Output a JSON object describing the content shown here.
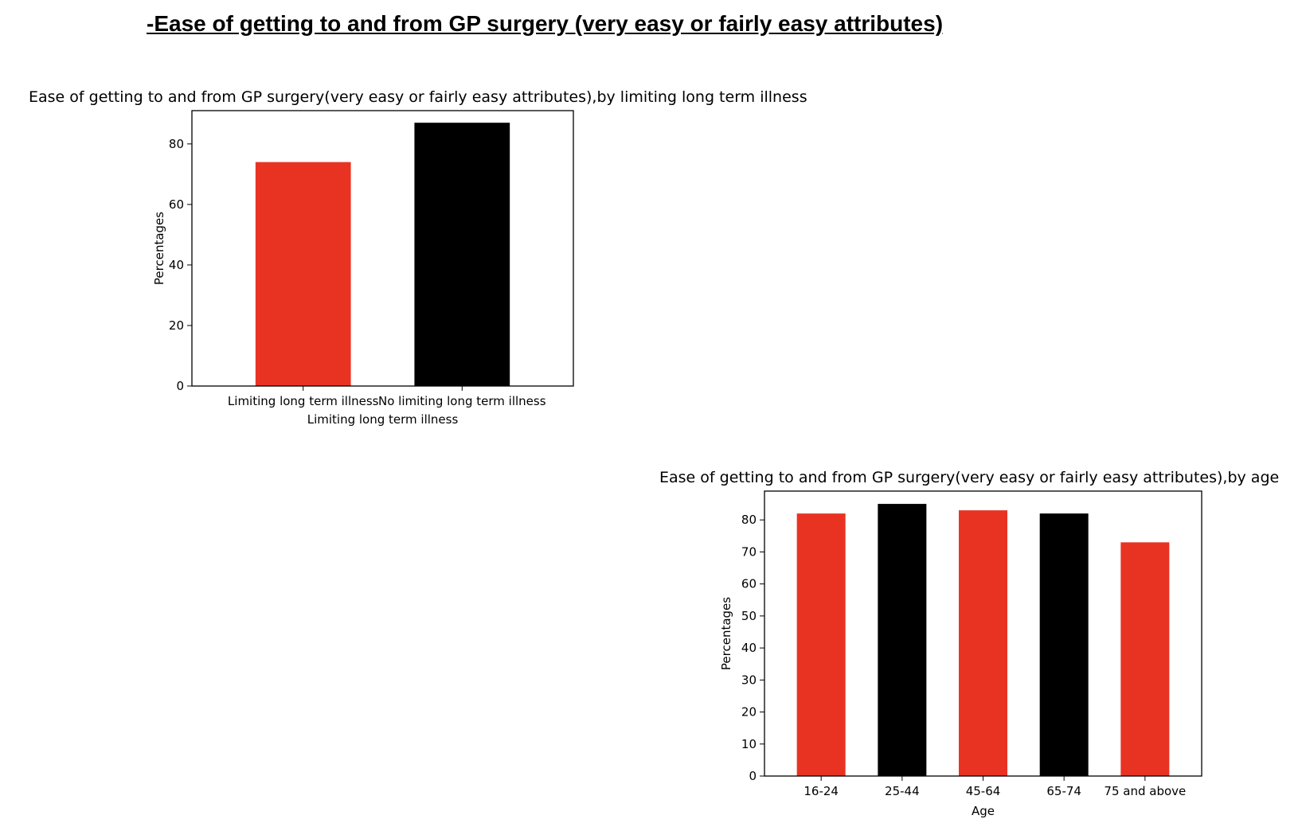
{
  "heading": "-Ease of getting to and from GP surgery (very easy or fairly easy attributes)",
  "chart_data": [
    {
      "type": "bar",
      "title": "Ease of getting to and from GP surgery(very easy or fairly easy attributes),by limiting long term illness",
      "xlabel": "Limiting long term illness",
      "ylabel": "Percentages",
      "categories": [
        "Limiting long term illness",
        "No limiting long term illness"
      ],
      "values": [
        74,
        87
      ],
      "colors": [
        "#e83323",
        "#000000"
      ],
      "ylim": [
        0,
        91
      ],
      "yticks": [
        0,
        20,
        40,
        60,
        80
      ],
      "grid": false,
      "legend": "none"
    },
    {
      "type": "bar",
      "title": "Ease of getting to and from GP surgery(very easy or fairly easy attributes),by age",
      "xlabel": "Age",
      "ylabel": "Percentages",
      "categories": [
        "16-24",
        "25-44",
        "45-64",
        "65-74",
        "75 and above"
      ],
      "values": [
        82,
        85,
        83,
        82,
        73
      ],
      "colors": [
        "#e83323",
        "#000000",
        "#e83323",
        "#000000",
        "#e83323"
      ],
      "ylim": [
        0,
        89
      ],
      "yticks": [
        0,
        10,
        20,
        30,
        40,
        50,
        60,
        70,
        80
      ],
      "grid": false,
      "legend": "none"
    }
  ]
}
